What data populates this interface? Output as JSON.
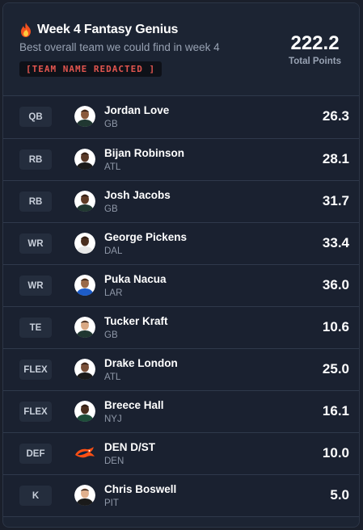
{
  "header": {
    "title": "Week 4 Fantasy Genius",
    "subtitle": "Best overall team we could find in week 4",
    "team_name": "[TEAM NAME REDACTED ]",
    "total_points": "222.2",
    "total_label": "Total Points",
    "icon": "fire-icon"
  },
  "colors": {
    "background": "#1c2433",
    "badge_text": "#e2554f",
    "muted_text": "#98a2b3"
  },
  "roster": [
    {
      "pos": "QB",
      "name": "Jordan Love",
      "team": "GB",
      "points": "26.3",
      "jersey": "#203731",
      "skin": "#8a5a3c"
    },
    {
      "pos": "RB",
      "name": "Bijan Robinson",
      "team": "ATL",
      "points": "28.1",
      "jersey": "#1a1a1a",
      "skin": "#5a3a28"
    },
    {
      "pos": "RB",
      "name": "Josh Jacobs",
      "team": "GB",
      "points": "31.7",
      "jersey": "#203731",
      "skin": "#5e3b26"
    },
    {
      "pos": "WR",
      "name": "George Pickens",
      "team": "DAL",
      "points": "33.4",
      "jersey": "#e8e8e8",
      "skin": "#4a2e1e"
    },
    {
      "pos": "WR",
      "name": "Puka Nacua",
      "team": "LAR",
      "points": "36.0",
      "jersey": "#1d5cc8",
      "skin": "#9a6a48"
    },
    {
      "pos": "TE",
      "name": "Tucker Kraft",
      "team": "GB",
      "points": "10.6",
      "jersey": "#203731",
      "skin": "#d9a883"
    },
    {
      "pos": "FLEX",
      "name": "Drake London",
      "team": "ATL",
      "points": "25.0",
      "jersey": "#1a1a1a",
      "skin": "#7a5038"
    },
    {
      "pos": "FLEX",
      "name": "Breece Hall",
      "team": "NYJ",
      "points": "16.1",
      "jersey": "#1e4d3a",
      "skin": "#4a2e1e"
    },
    {
      "pos": "DEF",
      "name": "DEN D/ST",
      "team": "DEN",
      "points": "10.0",
      "jersey": "",
      "skin": "",
      "logo": "broncos-logo-icon"
    },
    {
      "pos": "K",
      "name": "Chris Boswell",
      "team": "PIT",
      "points": "5.0",
      "jersey": "#1a1a1a",
      "skin": "#e0b08e"
    }
  ]
}
